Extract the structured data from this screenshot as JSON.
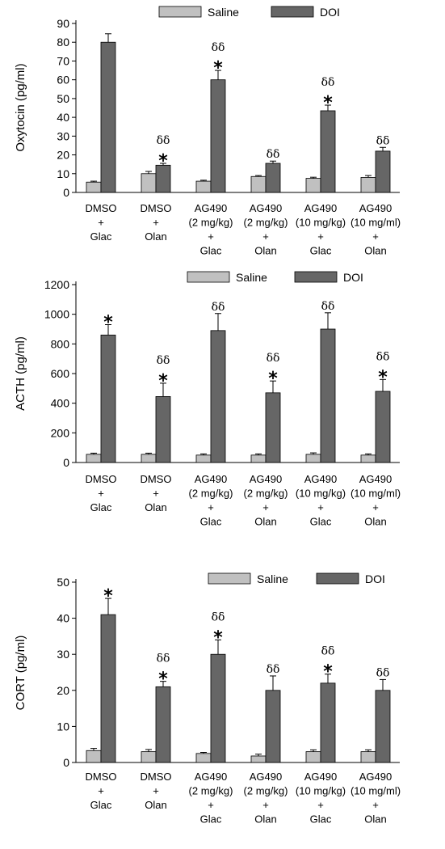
{
  "chart_data": [
    {
      "type": "bar",
      "ylabel": "Oxytocin (pg/ml)",
      "ylim": [
        0,
        90
      ],
      "yticks": [
        0,
        10,
        20,
        30,
        40,
        50,
        60,
        70,
        80,
        90
      ],
      "legend": {
        "placement": "top",
        "entries": [
          "Saline",
          "DOI"
        ]
      },
      "categories": [
        [
          "DMSO",
          "+",
          "Glac"
        ],
        [
          "DMSO",
          "+",
          "Olan"
        ],
        [
          "AG490",
          "(2 mg/kg)",
          "+",
          "Glac"
        ],
        [
          "AG490",
          "(2 mg/kg)",
          "+",
          "Olan"
        ],
        [
          "AG490",
          "(10 mg/kg)",
          "+",
          "Glac"
        ],
        [
          "AG490",
          "(10 mg/ml)",
          "+",
          "Olan"
        ]
      ],
      "series": [
        {
          "name": "Saline",
          "color": "#c0c0c0",
          "values": [
            5.5,
            10,
            6,
            8.5,
            7.5,
            8
          ],
          "errors": [
            0.5,
            1.2,
            0.5,
            0.5,
            0.6,
            1
          ]
        },
        {
          "name": "DOI",
          "color": "#666666",
          "values": [
            80,
            14.5,
            60,
            15.5,
            43.5,
            22
          ],
          "errors": [
            4.5,
            1,
            5,
            1.2,
            3,
            2
          ]
        }
      ],
      "annotations": {
        "star": [
          false,
          true,
          true,
          false,
          true,
          false
        ],
        "delta": [
          false,
          true,
          true,
          true,
          true,
          true
        ],
        "star_symbol": "*",
        "delta_symbol": "δδ"
      }
    },
    {
      "type": "bar",
      "ylabel": "ACTH (pg/ml)",
      "ylim": [
        0,
        1200
      ],
      "yticks": [
        0,
        200,
        400,
        600,
        800,
        1000,
        1200
      ],
      "legend": {
        "placement": "top",
        "entries": [
          "Saline",
          "DOI"
        ]
      },
      "categories": [
        [
          "DMSO",
          "+",
          "Glac"
        ],
        [
          "DMSO",
          "+",
          "Olan"
        ],
        [
          "AG490",
          "(2 mg/kg)",
          "+",
          "Glac"
        ],
        [
          "AG490",
          "(2 mg/kg)",
          "+",
          "Olan"
        ],
        [
          "AG490",
          "(10 mg/kg)",
          "+",
          "Glac"
        ],
        [
          "AG490",
          "(10 mg/ml)",
          "+",
          "Olan"
        ]
      ],
      "series": [
        {
          "name": "Saline",
          "color": "#c0c0c0",
          "values": [
            55,
            55,
            50,
            50,
            55,
            50
          ],
          "errors": [
            8,
            8,
            8,
            8,
            10,
            8
          ]
        },
        {
          "name": "DOI",
          "color": "#666666",
          "values": [
            860,
            445,
            890,
            470,
            900,
            480
          ],
          "errors": [
            70,
            90,
            115,
            80,
            110,
            80
          ]
        }
      ],
      "annotations": {
        "star": [
          true,
          true,
          false,
          true,
          false,
          true
        ],
        "delta": [
          false,
          true,
          true,
          true,
          true,
          true
        ],
        "star_symbol": "*",
        "delta_symbol": "δδ"
      }
    },
    {
      "type": "bar",
      "ylabel": "CORT (pg/ml)",
      "ylim": [
        0,
        50
      ],
      "yticks": [
        0,
        10,
        20,
        30,
        40,
        50
      ],
      "legend": {
        "placement": "top",
        "entries": [
          "Saline",
          "DOI"
        ]
      },
      "categories": [
        [
          "DMSO",
          "+",
          "Glac"
        ],
        [
          "DMSO",
          "+",
          "Olan"
        ],
        [
          "AG490",
          "(2 mg/kg)",
          "+",
          "Glac"
        ],
        [
          "AG490",
          "(2 mg/kg)",
          "+",
          "Olan"
        ],
        [
          "AG490",
          "(10 mg/kg)",
          "+",
          "Glac"
        ],
        [
          "AG490",
          "(10 mg/ml)",
          "+",
          "Olan"
        ]
      ],
      "series": [
        {
          "name": "Saline",
          "color": "#c0c0c0",
          "values": [
            3.3,
            3,
            2.5,
            1.8,
            3,
            3
          ],
          "errors": [
            0.6,
            0.6,
            0.3,
            0.5,
            0.5,
            0.5
          ]
        },
        {
          "name": "DOI",
          "color": "#666666",
          "values": [
            41,
            21,
            30,
            20,
            22,
            20
          ],
          "errors": [
            4.5,
            1.5,
            4,
            4,
            2.5,
            3
          ]
        }
      ],
      "annotations": {
        "star": [
          true,
          true,
          true,
          false,
          true,
          false
        ],
        "delta": [
          false,
          true,
          true,
          true,
          true,
          true
        ],
        "star_symbol": "*",
        "delta_symbol": "δδ"
      }
    }
  ]
}
